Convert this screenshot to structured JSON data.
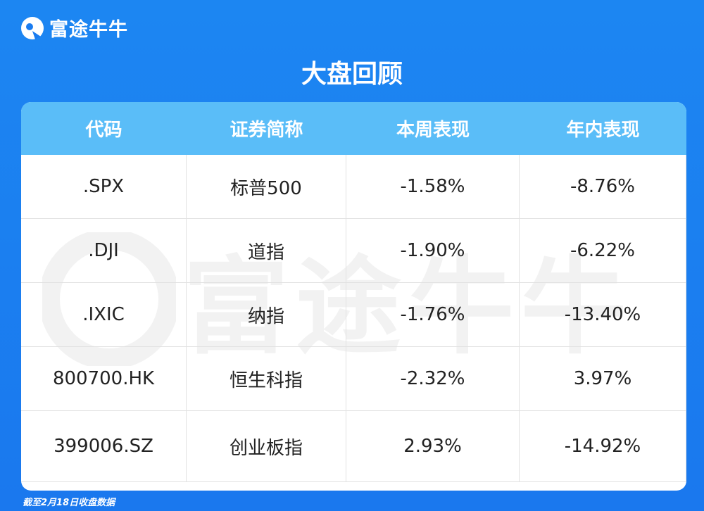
{
  "header": {
    "brand": "富途牛牛",
    "title": "大盘回顾"
  },
  "table": {
    "columns": [
      "代码",
      "证券简称",
      "本周表现",
      "年内表现"
    ],
    "rows": [
      [
        ".SPX",
        "标普500",
        "-1.58%",
        "-8.76%"
      ],
      [
        ".DJI",
        "道指",
        "-1.90%",
        "-6.22%"
      ],
      [
        ".IXIC",
        "纳指",
        "-1.76%",
        "-13.40%"
      ],
      [
        "800700.HK",
        "恒生科指",
        "-2.32%",
        "3.97%"
      ],
      [
        "399006.SZ",
        "创业板指",
        "2.93%",
        "-14.92%"
      ]
    ]
  },
  "watermark": "富途牛牛",
  "footnote": "截至2月18日收盘数据"
}
